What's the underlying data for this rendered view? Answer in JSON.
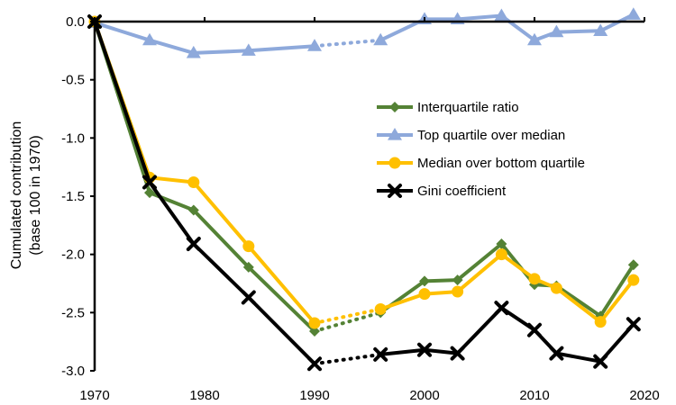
{
  "chart_data": {
    "type": "line",
    "title": "",
    "xlabel": "",
    "ylabel": [
      "Cumulated contribution",
      "(base 100 in 1970)"
    ],
    "xlim": [
      1970,
      2020
    ],
    "ylim": [
      -3.0,
      0.0
    ],
    "xticks": [
      1970,
      1980,
      1990,
      2000,
      2010,
      2020
    ],
    "yticks": [
      0.0,
      -0.5,
      -1.0,
      -1.5,
      -2.0,
      -2.5,
      -3.0
    ],
    "ytick_labels": [
      "0.0",
      "-0.5",
      "-1.0",
      "-1.5",
      "-2.0",
      "-2.5",
      "-3.0"
    ],
    "grid": false,
    "legend_position": "right",
    "dotted_gap": [
      1990,
      1996
    ],
    "series": [
      {
        "name": "Interquartile ratio",
        "color": "#548235",
        "marker": "diamond",
        "x": [
          1970,
          1975,
          1979,
          1984,
          1990,
          1996,
          2000,
          2003,
          2007,
          2010,
          2012,
          2016,
          2019
        ],
        "y": [
          0.0,
          -1.47,
          -1.62,
          -2.11,
          -2.66,
          -2.5,
          -2.23,
          -2.22,
          -1.91,
          -2.26,
          -2.27,
          -2.53,
          -2.09
        ]
      },
      {
        "name": "Top quartile over median",
        "color": "#8EA9DB",
        "marker": "triangle",
        "x": [
          1970,
          1975,
          1979,
          1984,
          1990,
          1996,
          2000,
          2003,
          2007,
          2010,
          2012,
          2016,
          2019
        ],
        "y": [
          -0.01,
          -0.16,
          -0.27,
          -0.25,
          -0.21,
          -0.16,
          0.02,
          0.02,
          0.05,
          -0.16,
          -0.09,
          -0.08,
          0.06
        ]
      },
      {
        "name": "Median over bottom quartile",
        "color": "#FFC000",
        "marker": "circle",
        "x": [
          1970,
          1975,
          1979,
          1984,
          1990,
          1996,
          2000,
          2003,
          2007,
          2010,
          2012,
          2016,
          2019
        ],
        "y": [
          0.0,
          -1.34,
          -1.38,
          -1.93,
          -2.59,
          -2.47,
          -2.34,
          -2.32,
          -2.0,
          -2.21,
          -2.29,
          -2.58,
          -2.22
        ]
      },
      {
        "name": "Gini coefficient",
        "color": "#000000",
        "marker": "x",
        "x": [
          1970,
          1975,
          1979,
          1984,
          1990,
          1996,
          2000,
          2003,
          2007,
          2010,
          2012,
          2016,
          2019
        ],
        "y": [
          0.0,
          -1.38,
          -1.91,
          -2.37,
          -2.94,
          -2.86,
          -2.82,
          -2.85,
          -2.46,
          -2.65,
          -2.85,
          -2.92,
          -2.6
        ]
      }
    ]
  }
}
